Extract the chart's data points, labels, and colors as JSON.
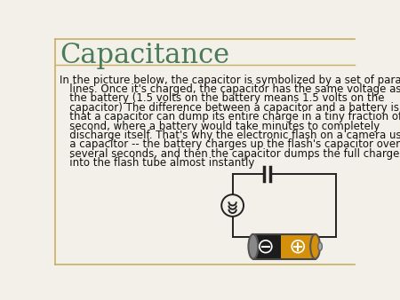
{
  "title": "Capacitance",
  "title_color": "#4a7c59",
  "title_fontsize": 22,
  "body_lines": [
    "In the picture below, the capacitor is symbolized by a set of parallel",
    "   lines. Once it's charged, the capacitor has the same voltage as",
    "   the battery (1.5 volts on the battery means 1.5 volts on the",
    "   capacitor) The difference between a capacitor and a battery is",
    "   that a capacitor can dump its entire charge in a tiny fraction of a",
    "   second, where a battery would take minutes to completely",
    "   discharge itself. That's why the electronic flash on a camera uses",
    "   a capacitor -- the battery charges up the flash's capacitor over",
    "   several seconds, and then the capacitor dumps the full charge",
    "   into the flash tube almost instantly"
  ],
  "body_fontsize": 8.5,
  "body_color": "#111111",
  "background_color": "#f2f0e8",
  "border_color": "#c8b060",
  "figsize": [
    4.5,
    3.38
  ],
  "dpi": 100,
  "line_color": "#222222",
  "bat_dark": "#1a1a1a",
  "bat_orange": "#d4900a",
  "bat_silver": "#aaaaaa"
}
